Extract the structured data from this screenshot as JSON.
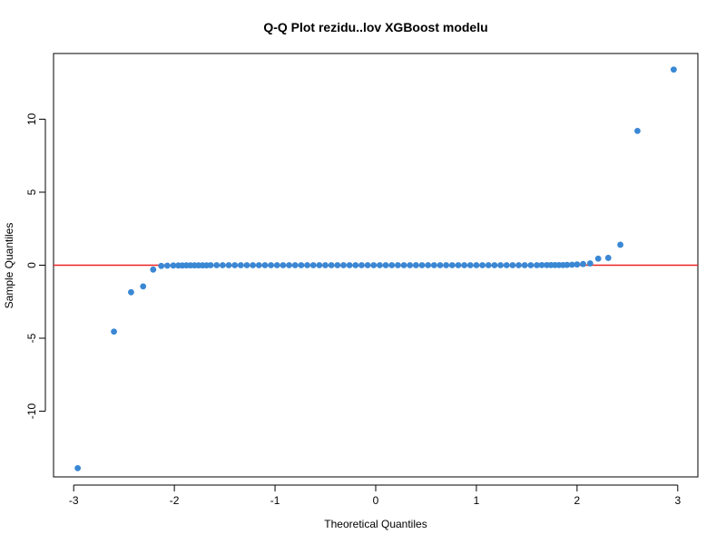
{
  "chart_data": {
    "type": "scatter",
    "title": "Q-Q Plot rezidu..lov XGBoost modelu",
    "xlabel": "Theoretical Quantiles",
    "ylabel": "Sample Quantiles",
    "xlim": [
      -3.2,
      3.2
    ],
    "ylim": [
      -14.5,
      14.5
    ],
    "xticks": [
      -3,
      -2,
      -1,
      0,
      1,
      2,
      3
    ],
    "xtick_labels": [
      "-3",
      "-2",
      "-1",
      "0",
      "1",
      "2",
      "3"
    ],
    "yticks": [
      -10,
      -5,
      0,
      5,
      10
    ],
    "ytick_labels": [
      "-10",
      "-5",
      "0",
      "5",
      "10"
    ],
    "grid": false,
    "reference_line": {
      "y": 0,
      "color": "#ee2222"
    },
    "point_color": "#3a87d4",
    "series": [
      {
        "points": [
          [
            -2.96,
            -13.9
          ],
          [
            -2.6,
            -4.55
          ],
          [
            -2.43,
            -1.85
          ],
          [
            -2.31,
            -1.45
          ],
          [
            -2.21,
            -0.3
          ],
          [
            -2.13,
            -0.05
          ],
          [
            -2.07,
            -0.03
          ],
          [
            -2.01,
            -0.02
          ],
          [
            -1.96,
            -0.02
          ],
          [
            -1.92,
            -0.02
          ],
          [
            -1.88,
            -0.01
          ],
          [
            -1.84,
            -0.01
          ],
          [
            -1.8,
            -0.01
          ],
          [
            -1.76,
            -0.01
          ],
          [
            -1.72,
            -0.01
          ],
          [
            -1.68,
            -0.01
          ],
          [
            -1.64,
            0
          ],
          [
            -1.58,
            0
          ],
          [
            -1.52,
            0
          ],
          [
            -1.46,
            0
          ],
          [
            -1.4,
            0
          ],
          [
            -1.34,
            0
          ],
          [
            -1.28,
            0
          ],
          [
            -1.22,
            0
          ],
          [
            -1.16,
            0
          ],
          [
            -1.1,
            0
          ],
          [
            -1.04,
            0
          ],
          [
            -0.98,
            0
          ],
          [
            -0.92,
            0
          ],
          [
            -0.86,
            0
          ],
          [
            -0.8,
            0
          ],
          [
            -0.74,
            0
          ],
          [
            -0.68,
            0
          ],
          [
            -0.62,
            0
          ],
          [
            -0.56,
            0
          ],
          [
            -0.5,
            0
          ],
          [
            -0.44,
            0
          ],
          [
            -0.38,
            0
          ],
          [
            -0.32,
            0
          ],
          [
            -0.26,
            0
          ],
          [
            -0.2,
            0
          ],
          [
            -0.14,
            0
          ],
          [
            -0.08,
            0
          ],
          [
            -0.02,
            0
          ],
          [
            0.04,
            0
          ],
          [
            0.1,
            0
          ],
          [
            0.16,
            0
          ],
          [
            0.22,
            0
          ],
          [
            0.28,
            0
          ],
          [
            0.34,
            0
          ],
          [
            0.4,
            0
          ],
          [
            0.46,
            0
          ],
          [
            0.52,
            0
          ],
          [
            0.58,
            0
          ],
          [
            0.64,
            0
          ],
          [
            0.7,
            0
          ],
          [
            0.76,
            0
          ],
          [
            0.82,
            0
          ],
          [
            0.88,
            0
          ],
          [
            0.94,
            0
          ],
          [
            1.0,
            0
          ],
          [
            1.06,
            0
          ],
          [
            1.12,
            0
          ],
          [
            1.18,
            0
          ],
          [
            1.24,
            0
          ],
          [
            1.3,
            0
          ],
          [
            1.36,
            0
          ],
          [
            1.42,
            0
          ],
          [
            1.48,
            0
          ],
          [
            1.54,
            0
          ],
          [
            1.6,
            0
          ],
          [
            1.65,
            0.01
          ],
          [
            1.7,
            0.01
          ],
          [
            1.74,
            0.01
          ],
          [
            1.78,
            0.01
          ],
          [
            1.82,
            0.01
          ],
          [
            1.86,
            0.01
          ],
          [
            1.9,
            0.02
          ],
          [
            1.95,
            0.03
          ],
          [
            2.0,
            0.05
          ],
          [
            2.06,
            0.08
          ],
          [
            2.13,
            0.12
          ],
          [
            2.21,
            0.45
          ],
          [
            2.31,
            0.5
          ],
          [
            2.43,
            1.4
          ],
          [
            2.6,
            9.2
          ],
          [
            2.96,
            13.4
          ]
        ]
      }
    ]
  }
}
